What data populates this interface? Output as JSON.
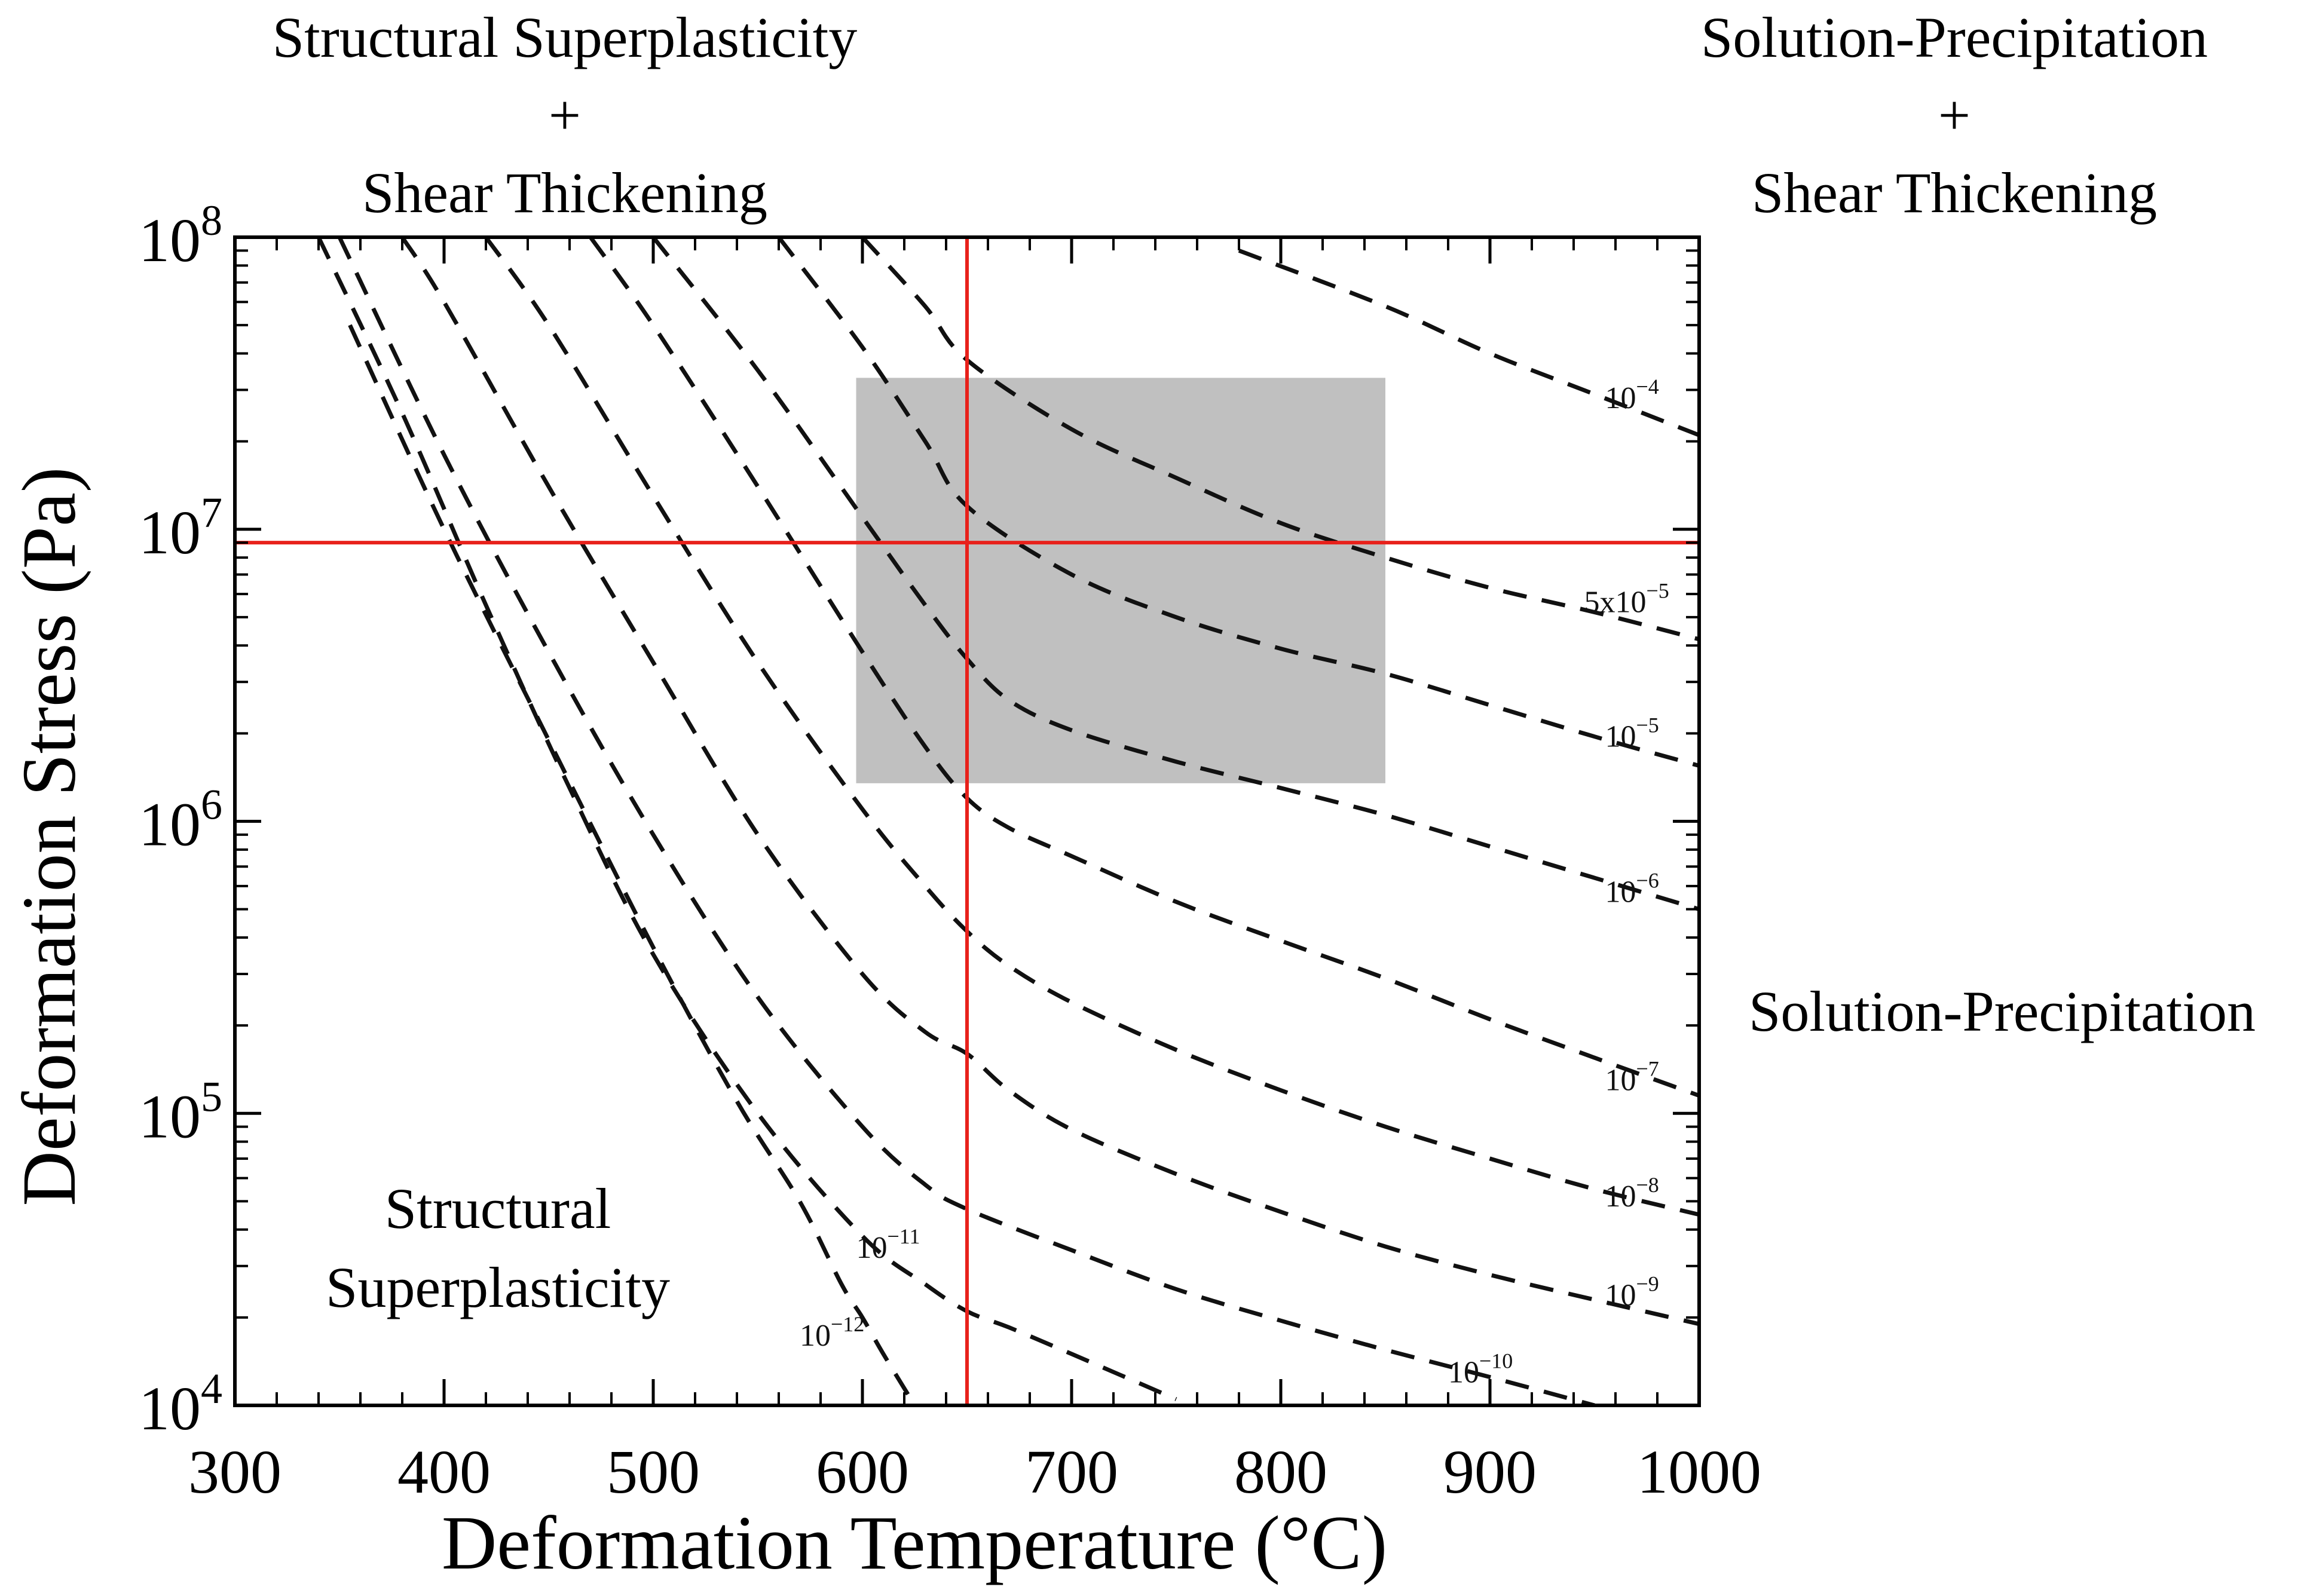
{
  "chart_data": {
    "type": "line",
    "xlabel": "Deformation Temperature (°C)",
    "ylabel": "Deformation Stress (Pa)",
    "xlim": [
      300,
      1000
    ],
    "ylim": [
      10000,
      100000000
    ],
    "y_scale": "log",
    "grid": false,
    "x_ticks": [
      {
        "value": 300,
        "label": "300"
      },
      {
        "value": 400,
        "label": "400"
      },
      {
        "value": 500,
        "label": "500"
      },
      {
        "value": 600,
        "label": "600"
      },
      {
        "value": 700,
        "label": "700"
      },
      {
        "value": 800,
        "label": "800"
      },
      {
        "value": 900,
        "label": "900"
      },
      {
        "value": 1000,
        "label": "1000"
      }
    ],
    "y_ticks": [
      {
        "value": 10000,
        "base": "10",
        "exp": "4"
      },
      {
        "value": 100000,
        "base": "10",
        "exp": "5"
      },
      {
        "value": 1000000,
        "base": "10",
        "exp": "6"
      },
      {
        "value": 10000000,
        "base": "10",
        "exp": "7"
      },
      {
        "value": 100000000,
        "base": "10",
        "exp": "8"
      }
    ],
    "reference_lines": [
      {
        "orientation": "vertical",
        "x": 650,
        "color": "#e8211b"
      },
      {
        "orientation": "horizontal",
        "y": 9000000,
        "color": "#e8211b"
      }
    ],
    "shaded_region": {
      "x": [
        597,
        850
      ],
      "y": [
        1350000,
        33000000
      ],
      "color": "#c0c0c0"
    },
    "series": [
      {
        "label": {
          "base": "10",
          "exp": "−4"
        },
        "label_at": {
          "x": 955,
          "y": 26000000
        },
        "points": [
          [
            780,
            90000000
          ],
          [
            850,
            58000000
          ],
          [
            900,
            40000000
          ],
          [
            950,
            29000000
          ],
          [
            1000,
            21000000
          ]
        ]
      },
      {
        "label": {
          "base": "5x10",
          "exp": "−5"
        },
        "label_at": {
          "x": 945,
          "y": 5200000
        },
        "points": [
          [
            600,
            100000000
          ],
          [
            630,
            58000000
          ],
          [
            650,
            38000000
          ],
          [
            700,
            22000000
          ],
          [
            750,
            15000000
          ],
          [
            800,
            10500000
          ],
          [
            850,
            8000000
          ],
          [
            900,
            6300000
          ],
          [
            950,
            5200000
          ],
          [
            1000,
            4200000
          ]
        ]
      },
      {
        "label": {
          "base": "10",
          "exp": "−5"
        },
        "label_at": {
          "x": 955,
          "y": 1800000
        },
        "points": [
          [
            560,
            100000000
          ],
          [
            600,
            42000000
          ],
          [
            630,
            20000000
          ],
          [
            650,
            12000000
          ],
          [
            700,
            7000000
          ],
          [
            750,
            5000000
          ],
          [
            800,
            3900000
          ],
          [
            850,
            3200000
          ],
          [
            900,
            2500000
          ],
          [
            950,
            1950000
          ],
          [
            1000,
            1550000
          ]
        ]
      },
      {
        "label": {
          "base": "10",
          "exp": "−6"
        },
        "label_at": {
          "x": 955,
          "y": 530000
        },
        "points": [
          [
            500,
            100000000
          ],
          [
            550,
            35000000
          ],
          [
            600,
            11000000
          ],
          [
            630,
            5500000
          ],
          [
            650,
            3600000
          ],
          [
            670,
            2600000
          ],
          [
            700,
            2050000
          ],
          [
            750,
            1600000
          ],
          [
            800,
            1300000
          ],
          [
            850,
            1050000
          ],
          [
            900,
            820000
          ],
          [
            950,
            640000
          ],
          [
            1000,
            500000
          ]
        ]
      },
      {
        "label": {
          "base": "10",
          "exp": "−7"
        },
        "label_at": {
          "x": 955,
          "y": 120000
        },
        "points": [
          [
            470,
            100000000
          ],
          [
            500,
            50000000
          ],
          [
            550,
            14000000
          ],
          [
            600,
            3800000
          ],
          [
            630,
            1800000
          ],
          [
            650,
            1200000
          ],
          [
            670,
            950000
          ],
          [
            700,
            760000
          ],
          [
            750,
            530000
          ],
          [
            800,
            390000
          ],
          [
            850,
            290000
          ],
          [
            900,
            210000
          ],
          [
            950,
            155000
          ],
          [
            1000,
            115000
          ]
        ]
      },
      {
        "label": {
          "base": "10",
          "exp": "−8"
        },
        "label_at": {
          "x": 955,
          "y": 48000
        },
        "points": [
          [
            420,
            100000000
          ],
          [
            450,
            50000000
          ],
          [
            500,
            13000000
          ],
          [
            550,
            3500000
          ],
          [
            600,
            1100000
          ],
          [
            630,
            600000
          ],
          [
            650,
            420000
          ],
          [
            670,
            320000
          ],
          [
            700,
            240000
          ],
          [
            750,
            165000
          ],
          [
            800,
            120000
          ],
          [
            850,
            90000
          ],
          [
            900,
            70000
          ],
          [
            950,
            55000
          ],
          [
            1000,
            45000
          ]
        ]
      },
      {
        "label": {
          "base": "10",
          "exp": "−9"
        },
        "label_at": {
          "x": 955,
          "y": 22000
        },
        "points": [
          [
            380,
            100000000
          ],
          [
            400,
            60000000
          ],
          [
            450,
            14000000
          ],
          [
            500,
            3500000
          ],
          [
            550,
            900000
          ],
          [
            600,
            300000
          ],
          [
            630,
            190000
          ],
          [
            650,
            160000
          ],
          [
            670,
            120000
          ],
          [
            700,
            88000
          ],
          [
            750,
            62000
          ],
          [
            800,
            46000
          ],
          [
            850,
            35000
          ],
          [
            900,
            28000
          ],
          [
            950,
            23000
          ],
          [
            1000,
            19000
          ]
        ]
      },
      {
        "label": {
          "base": "10",
          "exp": "−10"
        },
        "label_at": {
          "x": 880,
          "y": 12000
        },
        "points": [
          [
            350,
            100000000
          ],
          [
            400,
            18000000
          ],
          [
            450,
            3800000
          ],
          [
            500,
            900000
          ],
          [
            550,
            250000
          ],
          [
            600,
            90000
          ],
          [
            630,
            57000
          ],
          [
            650,
            47000
          ],
          [
            700,
            34000
          ],
          [
            750,
            25000
          ],
          [
            800,
            19500
          ],
          [
            850,
            15500
          ],
          [
            900,
            12500
          ],
          [
            950,
            10000
          ]
        ]
      },
      {
        "label": {
          "base": "10",
          "exp": "−11"
        },
        "label_at": {
          "x": 597,
          "y": 32000
        },
        "points": [
          [
            340,
            100000000
          ],
          [
            380,
            25000000
          ],
          [
            420,
            5500000
          ],
          [
            460,
            1300000
          ],
          [
            500,
            350000
          ],
          [
            550,
            100000
          ],
          [
            600,
            38000
          ],
          [
            630,
            26000
          ],
          [
            650,
            21000
          ],
          [
            670,
            18500
          ],
          [
            700,
            15000
          ],
          [
            750,
            10500
          ]
        ]
      },
      {
        "label": {
          "base": "10",
          "exp": "−12"
        },
        "label_at": {
          "x": 570,
          "y": 16000
        },
        "points": [
          [
            355,
            50000000
          ],
          [
            400,
            10000000
          ],
          [
            450,
            1900000
          ],
          [
            500,
            370000
          ],
          [
            540,
            110000
          ],
          [
            570,
            50000
          ],
          [
            590,
            26000
          ],
          [
            600,
            20000
          ],
          [
            610,
            15000
          ],
          [
            625,
            10000
          ]
        ]
      }
    ],
    "annotations": [
      {
        "lines": [
          "Structural Superplasticity",
          "+",
          "Shear Thickening"
        ],
        "position": "top-left"
      },
      {
        "lines": [
          "Solution-Precipitation",
          "+",
          "Shear Thickening"
        ],
        "position": "top-right"
      },
      {
        "lines": [
          "Solution-Precipitation"
        ],
        "position": "right-middle"
      },
      {
        "lines": [
          "Structural",
          "Superplasticity"
        ],
        "position": "bottom-left"
      }
    ]
  }
}
